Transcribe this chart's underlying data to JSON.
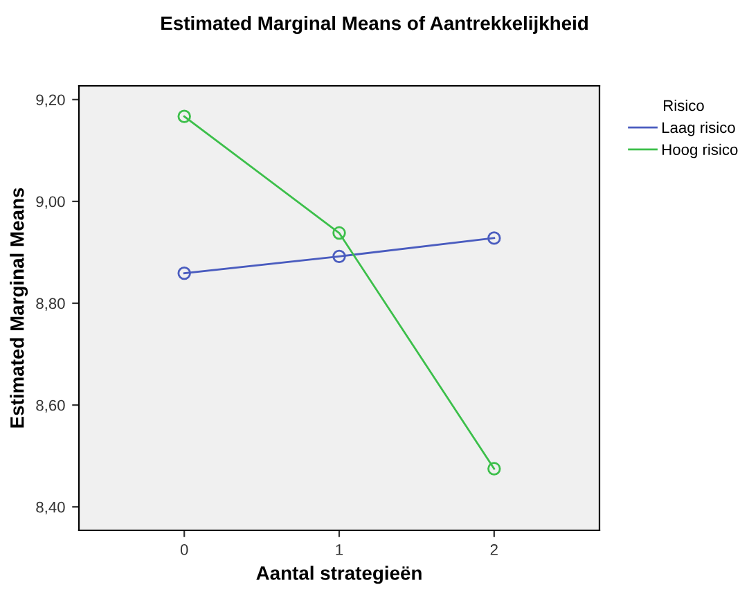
{
  "chart_data": {
    "type": "line",
    "title": "Estimated Marginal Means of Aantrekkelijkheid",
    "xlabel": "Aantal strategieën",
    "ylabel": "Estimated Marginal Means",
    "legend_title": "Risico",
    "categories": [
      "0",
      "1",
      "2"
    ],
    "series": [
      {
        "name": "Laag risico",
        "color": "#4a5cbf",
        "values": [
          8.859,
          8.892,
          8.928
        ]
      },
      {
        "name": "Hoog risico",
        "color": "#3cbf4a",
        "values": [
          9.167,
          8.938,
          8.475
        ]
      }
    ],
    "ylim": [
      8.354,
      9.227
    ],
    "yticks": [
      {
        "value": 8.4,
        "label": "8,40"
      },
      {
        "value": 8.6,
        "label": "8,60"
      },
      {
        "value": 8.8,
        "label": "8,80"
      },
      {
        "value": 9.0,
        "label": "9,00"
      },
      {
        "value": 9.2,
        "label": "9,20"
      }
    ],
    "marker": "circle",
    "line_style": "solid",
    "legend": "top right",
    "grid": false
  }
}
